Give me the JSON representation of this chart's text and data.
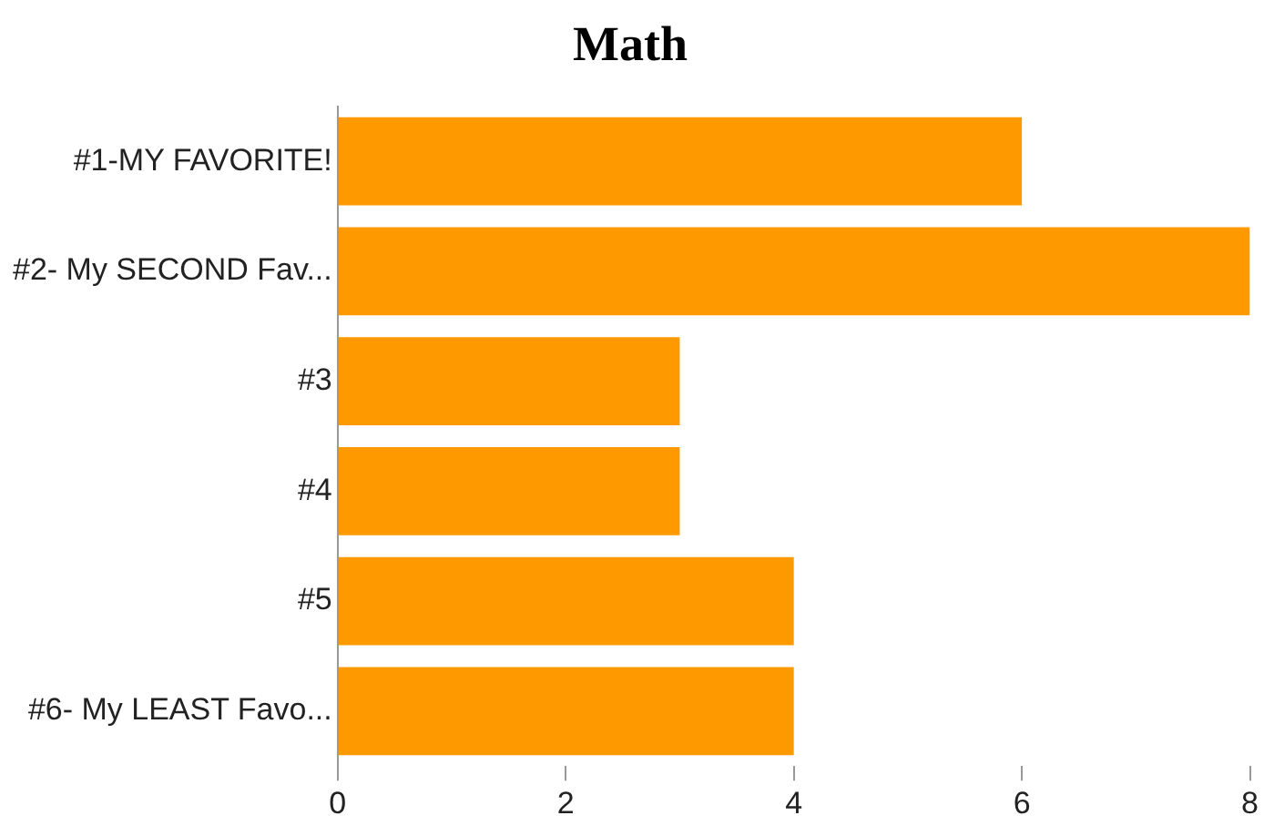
{
  "chart_data": {
    "type": "bar",
    "orientation": "horizontal",
    "title": "Math",
    "categories": [
      "#1-MY FAVORITE!",
      "#2- My SECOND Fav...",
      "#3",
      "#4",
      "#5",
      "#6- My LEAST Favo..."
    ],
    "values": [
      6,
      8,
      3,
      3,
      4,
      4
    ],
    "color": "#ff9900",
    "xlim": [
      0,
      8
    ],
    "xticks": [
      0,
      2,
      4,
      6,
      8
    ],
    "grid": false,
    "legend": false
  }
}
